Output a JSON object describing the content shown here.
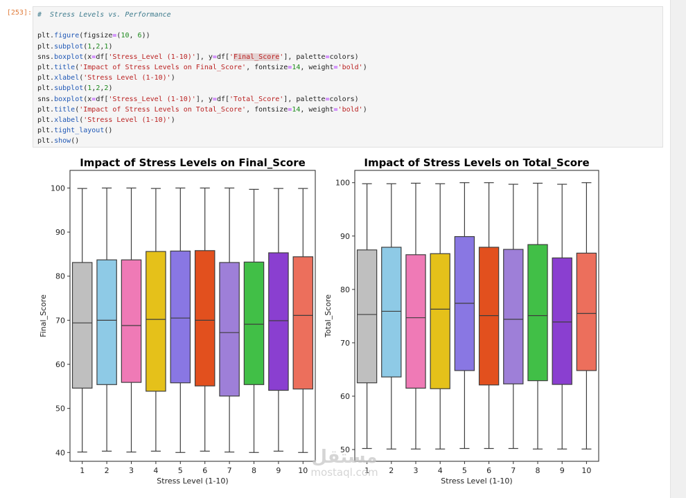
{
  "cell": {
    "prompt": "[253]:",
    "code_lines": [
      [
        {
          "t": "#  Stress Levels vs. Performance",
          "c": "c-comment"
        }
      ],
      [],
      [
        {
          "t": "plt.",
          "c": ""
        },
        {
          "t": "figure",
          "c": "c-fn"
        },
        {
          "t": "(figsize",
          "c": ""
        },
        {
          "t": "=",
          "c": "c-op"
        },
        {
          "t": "(",
          "c": ""
        },
        {
          "t": "10",
          "c": "c-num"
        },
        {
          "t": ", ",
          "c": ""
        },
        {
          "t": "6",
          "c": "c-num"
        },
        {
          "t": "))",
          "c": ""
        }
      ],
      [
        {
          "t": "plt.",
          "c": ""
        },
        {
          "t": "subplot",
          "c": "c-fn"
        },
        {
          "t": "(",
          "c": ""
        },
        {
          "t": "1",
          "c": "c-num"
        },
        {
          "t": ",",
          "c": ""
        },
        {
          "t": "2",
          "c": "c-num"
        },
        {
          "t": ",",
          "c": ""
        },
        {
          "t": "1",
          "c": "c-num"
        },
        {
          "t": ")",
          "c": ""
        }
      ],
      [
        {
          "t": "sns.",
          "c": ""
        },
        {
          "t": "boxplot",
          "c": "c-fn"
        },
        {
          "t": "(x",
          "c": ""
        },
        {
          "t": "=",
          "c": "c-op"
        },
        {
          "t": "df[",
          "c": ""
        },
        {
          "t": "'Stress_Level (1-10)'",
          "c": "c-str"
        },
        {
          "t": "], y",
          "c": ""
        },
        {
          "t": "=",
          "c": "c-op"
        },
        {
          "t": "df[",
          "c": ""
        },
        {
          "t": "'",
          "c": "c-str"
        },
        {
          "t": "Final_Score",
          "c": "c-str c-hl"
        },
        {
          "t": "'",
          "c": "c-str"
        },
        {
          "t": "], palette",
          "c": ""
        },
        {
          "t": "=",
          "c": "c-op"
        },
        {
          "t": "colors)",
          "c": ""
        }
      ],
      [
        {
          "t": "plt.",
          "c": ""
        },
        {
          "t": "title",
          "c": "c-fn"
        },
        {
          "t": "(",
          "c": ""
        },
        {
          "t": "'Impact of Stress Levels on Final_Score'",
          "c": "c-str"
        },
        {
          "t": ", fontsize",
          "c": ""
        },
        {
          "t": "=",
          "c": "c-op"
        },
        {
          "t": "14",
          "c": "c-num"
        },
        {
          "t": ", weight",
          "c": ""
        },
        {
          "t": "=",
          "c": "c-op"
        },
        {
          "t": "'bold'",
          "c": "c-str"
        },
        {
          "t": ")",
          "c": ""
        }
      ],
      [
        {
          "t": "plt.",
          "c": ""
        },
        {
          "t": "xlabel",
          "c": "c-fn"
        },
        {
          "t": "(",
          "c": ""
        },
        {
          "t": "'Stress Level (1-10)'",
          "c": "c-str"
        },
        {
          "t": ")",
          "c": ""
        }
      ],
      [
        {
          "t": "plt.",
          "c": ""
        },
        {
          "t": "subplot",
          "c": "c-fn"
        },
        {
          "t": "(",
          "c": ""
        },
        {
          "t": "1",
          "c": "c-num"
        },
        {
          "t": ",",
          "c": ""
        },
        {
          "t": "2",
          "c": "c-num"
        },
        {
          "t": ",",
          "c": ""
        },
        {
          "t": "2",
          "c": "c-num"
        },
        {
          "t": ")",
          "c": ""
        }
      ],
      [
        {
          "t": "sns.",
          "c": ""
        },
        {
          "t": "boxplot",
          "c": "c-fn"
        },
        {
          "t": "(x",
          "c": ""
        },
        {
          "t": "=",
          "c": "c-op"
        },
        {
          "t": "df[",
          "c": ""
        },
        {
          "t": "'Stress_Level (1-10)'",
          "c": "c-str"
        },
        {
          "t": "], y",
          "c": ""
        },
        {
          "t": "=",
          "c": "c-op"
        },
        {
          "t": "df[",
          "c": ""
        },
        {
          "t": "'Total_Score'",
          "c": "c-str"
        },
        {
          "t": "], palette",
          "c": ""
        },
        {
          "t": "=",
          "c": "c-op"
        },
        {
          "t": "colors)",
          "c": ""
        }
      ],
      [
        {
          "t": "plt.",
          "c": ""
        },
        {
          "t": "title",
          "c": "c-fn"
        },
        {
          "t": "(",
          "c": ""
        },
        {
          "t": "'Impact of Stress Levels on Total_Score'",
          "c": "c-str"
        },
        {
          "t": ", fontsize",
          "c": ""
        },
        {
          "t": "=",
          "c": "c-op"
        },
        {
          "t": "14",
          "c": "c-num"
        },
        {
          "t": ", weight",
          "c": ""
        },
        {
          "t": "=",
          "c": "c-op"
        },
        {
          "t": "'bold'",
          "c": "c-str"
        },
        {
          "t": ")",
          "c": ""
        }
      ],
      [
        {
          "t": "plt.",
          "c": ""
        },
        {
          "t": "xlabel",
          "c": "c-fn"
        },
        {
          "t": "(",
          "c": ""
        },
        {
          "t": "'Stress Level (1-10)'",
          "c": "c-str"
        },
        {
          "t": ")",
          "c": ""
        }
      ],
      [
        {
          "t": "plt.",
          "c": ""
        },
        {
          "t": "tight_layout",
          "c": "c-fn"
        },
        {
          "t": "()",
          "c": ""
        }
      ],
      [
        {
          "t": "plt.",
          "c": ""
        },
        {
          "t": "show",
          "c": "c-fn"
        },
        {
          "t": "()",
          "c": ""
        }
      ]
    ]
  },
  "watermark": {
    "arabic": "مستقل",
    "latin": "mostaql.com"
  },
  "chart_data": [
    {
      "type": "boxplot",
      "title": "Impact of Stress Levels on Final_Score",
      "xlabel": "Stress Level (1-10)",
      "ylabel": "Final_Score",
      "categories": [
        "1",
        "2",
        "3",
        "4",
        "5",
        "6",
        "7",
        "8",
        "9",
        "10"
      ],
      "ylim": [
        38,
        104
      ],
      "yticks": [
        40,
        50,
        60,
        70,
        80,
        90,
        100
      ],
      "colors": [
        "#bfbfbf",
        "#8ecae6",
        "#ef7ab6",
        "#e5c11a",
        "#8977e3",
        "#e2501e",
        "#9e7fd8",
        "#41bf47",
        "#8a3fd0",
        "#ec6f5c"
      ],
      "boxes": [
        {
          "min": 40.1,
          "q1": 54.6,
          "median": 69.4,
          "q3": 83.1,
          "max": 99.9
        },
        {
          "min": 40.3,
          "q1": 55.4,
          "median": 70.0,
          "q3": 83.7,
          "max": 100.0
        },
        {
          "min": 40.1,
          "q1": 55.9,
          "median": 68.8,
          "q3": 83.7,
          "max": 100.0
        },
        {
          "min": 40.3,
          "q1": 53.9,
          "median": 70.2,
          "q3": 85.6,
          "max": 99.9
        },
        {
          "min": 40.0,
          "q1": 55.8,
          "median": 70.5,
          "q3": 85.7,
          "max": 100.0
        },
        {
          "min": 40.3,
          "q1": 55.1,
          "median": 70.0,
          "q3": 85.8,
          "max": 100.0
        },
        {
          "min": 40.1,
          "q1": 52.8,
          "median": 67.2,
          "q3": 83.1,
          "max": 100.0
        },
        {
          "min": 40.0,
          "q1": 55.4,
          "median": 69.1,
          "q3": 83.2,
          "max": 99.7
        },
        {
          "min": 40.3,
          "q1": 54.1,
          "median": 69.9,
          "q3": 85.3,
          "max": 99.9
        },
        {
          "min": 40.0,
          "q1": 54.4,
          "median": 71.1,
          "q3": 84.4,
          "max": 99.9
        }
      ]
    },
    {
      "type": "boxplot",
      "title": "Impact of Stress Levels on Total_Score",
      "xlabel": "Stress Level (1-10)",
      "ylabel": "Total_Score",
      "categories": [
        "1",
        "2",
        "3",
        "4",
        "5",
        "6",
        "7",
        "8",
        "9",
        "10"
      ],
      "ylim": [
        47.8,
        102.3
      ],
      "yticks": [
        50,
        60,
        70,
        80,
        90,
        100
      ],
      "colors": [
        "#bfbfbf",
        "#8ecae6",
        "#ef7ab6",
        "#e5c11a",
        "#8977e3",
        "#e2501e",
        "#9e7fd8",
        "#41bf47",
        "#8a3fd0",
        "#ec6f5c"
      ],
      "boxes": [
        {
          "min": 50.2,
          "q1": 62.5,
          "median": 75.3,
          "q3": 87.4,
          "max": 99.8
        },
        {
          "min": 50.1,
          "q1": 63.6,
          "median": 75.9,
          "q3": 87.9,
          "max": 99.8
        },
        {
          "min": 50.1,
          "q1": 61.5,
          "median": 74.7,
          "q3": 86.5,
          "max": 99.9
        },
        {
          "min": 50.1,
          "q1": 61.4,
          "median": 76.3,
          "q3": 86.7,
          "max": 99.8
        },
        {
          "min": 50.2,
          "q1": 64.8,
          "median": 77.4,
          "q3": 89.9,
          "max": 100.0
        },
        {
          "min": 50.2,
          "q1": 62.1,
          "median": 75.1,
          "q3": 87.9,
          "max": 100.0
        },
        {
          "min": 50.2,
          "q1": 62.3,
          "median": 74.4,
          "q3": 87.5,
          "max": 99.7
        },
        {
          "min": 50.1,
          "q1": 62.9,
          "median": 75.1,
          "q3": 88.4,
          "max": 99.9
        },
        {
          "min": 50.1,
          "q1": 62.2,
          "median": 73.9,
          "q3": 85.9,
          "max": 99.7
        },
        {
          "min": 50.1,
          "q1": 64.8,
          "median": 75.5,
          "q3": 86.8,
          "max": 100.0
        }
      ]
    }
  ]
}
